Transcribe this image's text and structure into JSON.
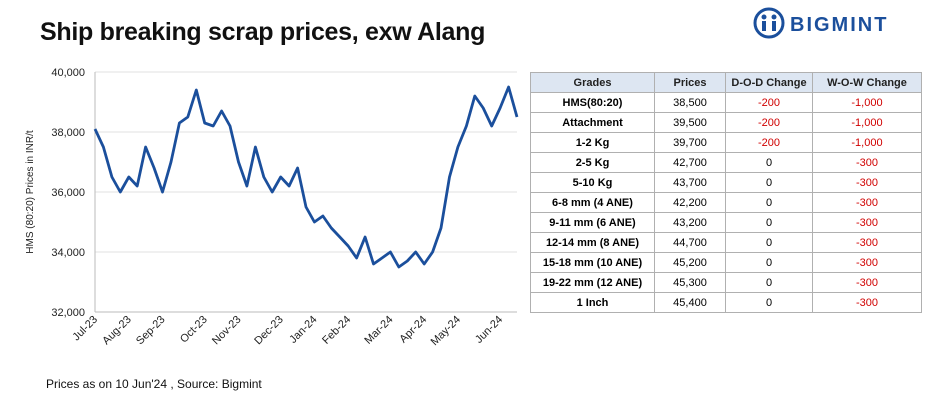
{
  "header": {
    "title": "Ship breaking scrap prices, exw Alang",
    "logo": "BIGMINT"
  },
  "chart_data": {
    "type": "line",
    "ylabel": "HMS (80:20) Prices in INR/t",
    "categories": [
      "Jul-23",
      null,
      null,
      null,
      "Aug-23",
      null,
      null,
      null,
      "Sep-23",
      null,
      null,
      null,
      null,
      "Oct-23",
      null,
      null,
      null,
      "Nov-23",
      null,
      null,
      null,
      null,
      "Dec-23",
      null,
      null,
      null,
      "Jan-24",
      null,
      null,
      null,
      "Feb-24",
      null,
      null,
      null,
      null,
      "Mar-24",
      null,
      null,
      null,
      "Apr-24",
      null,
      null,
      null,
      "May-24",
      null,
      null,
      null,
      null,
      "Jun-24",
      null,
      null
    ],
    "series": [
      {
        "name": "HMS (80:20)",
        "color": "#1b4f9c",
        "values": [
          38100,
          37500,
          36500,
          36000,
          36500,
          36200,
          37500,
          36800,
          36000,
          37000,
          38300,
          38500,
          39400,
          38300,
          38200,
          38700,
          38200,
          37000,
          36200,
          37500,
          36500,
          36000,
          36500,
          36200,
          36800,
          35500,
          35000,
          35200,
          34800,
          34500,
          34200,
          33800,
          34500,
          33600,
          33800,
          34000,
          33500,
          33700,
          34000,
          33600,
          34000,
          34800,
          36500,
          37500,
          38200,
          39200,
          38800,
          38200,
          38800,
          39500,
          38500
        ]
      }
    ],
    "ylim": [
      32000,
      40000
    ],
    "yticks": [
      {
        "value": 32000,
        "label": "32,000"
      },
      {
        "value": 34000,
        "label": "34,000"
      },
      {
        "value": 36000,
        "label": "36,000"
      },
      {
        "value": 38000,
        "label": "38,000"
      },
      {
        "value": 40000,
        "label": "40,000"
      }
    ],
    "grid": true
  },
  "table": {
    "columns": [
      "Grades",
      "Prices",
      "D-O-D Change",
      "W-O-W Change"
    ],
    "rows": [
      [
        "HMS(80:20)",
        "38,500",
        "-200",
        "-1,000"
      ],
      [
        "Attachment",
        "39,500",
        "-200",
        "-1,000"
      ],
      [
        "1-2 Kg",
        "39,700",
        "-200",
        "-1,000"
      ],
      [
        "2-5 Kg",
        "42,700",
        "0",
        "-300"
      ],
      [
        "5-10 Kg",
        "43,700",
        "0",
        "-300"
      ],
      [
        "6-8 mm (4 ANE)",
        "42,200",
        "0",
        "-300"
      ],
      [
        "9-11 mm (6 ANE)",
        "43,200",
        "0",
        "-300"
      ],
      [
        "12-14 mm (8 ANE)",
        "44,700",
        "0",
        "-300"
      ],
      [
        "15-18 mm (10 ANE)",
        "45,200",
        "0",
        "-300"
      ],
      [
        "19-22 mm (12 ANE)",
        "45,300",
        "0",
        "-300"
      ],
      [
        "1 Inch",
        "45,400",
        "0",
        "-300"
      ]
    ]
  },
  "footer": {
    "note": "Prices as on 10 Jun'24 , Source: Bigmint"
  }
}
